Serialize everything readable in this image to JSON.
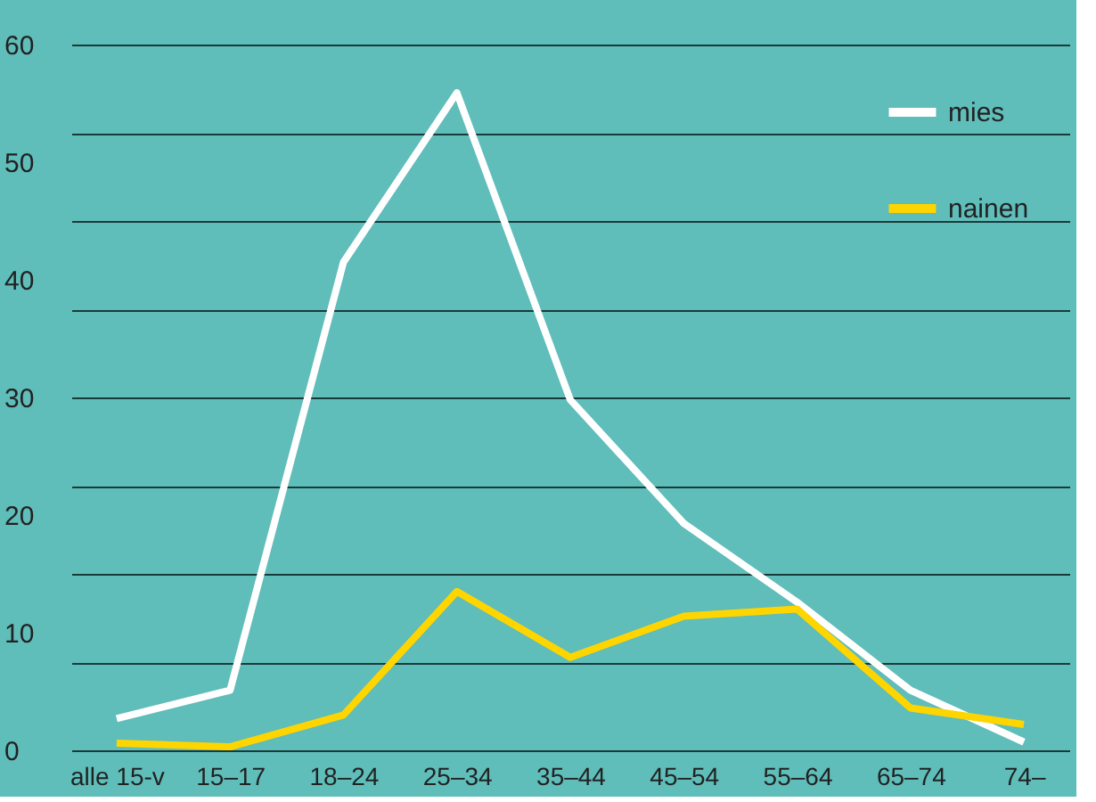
{
  "chart_data": {
    "type": "line",
    "categories": [
      "alle 15-v",
      "15–17",
      "18–24",
      "25–34",
      "35–44",
      "45–54",
      "55–64",
      "65–74",
      "74–"
    ],
    "series": [
      {
        "name": "mies",
        "color": "#ffffff",
        "values": [
          2.7,
          5.1,
          41.5,
          55.9,
          29.8,
          19.3,
          12.6,
          5.1,
          0.7
        ]
      },
      {
        "name": "nainen",
        "color": "#ffd500",
        "values": [
          0.6,
          0.3,
          3.0,
          13.5,
          7.9,
          11.4,
          12.0,
          3.6,
          2.2
        ]
      }
    ],
    "ylim": [
      0,
      60
    ],
    "yticks": [
      0,
      {
        "value": 7.5,
        "label": null
      },
      10,
      {
        "value": 15,
        "label": null
      },
      20,
      {
        "value": 22.5,
        "label": null
      },
      30,
      {
        "value": 37.5,
        "label": null
      },
      40,
      {
        "value": 45,
        "label": null
      },
      50,
      {
        "value": 52.5,
        "label": null
      },
      60
    ],
    "grid": "y",
    "legend": "top right",
    "marker": "none",
    "line_style": "solid"
  }
}
